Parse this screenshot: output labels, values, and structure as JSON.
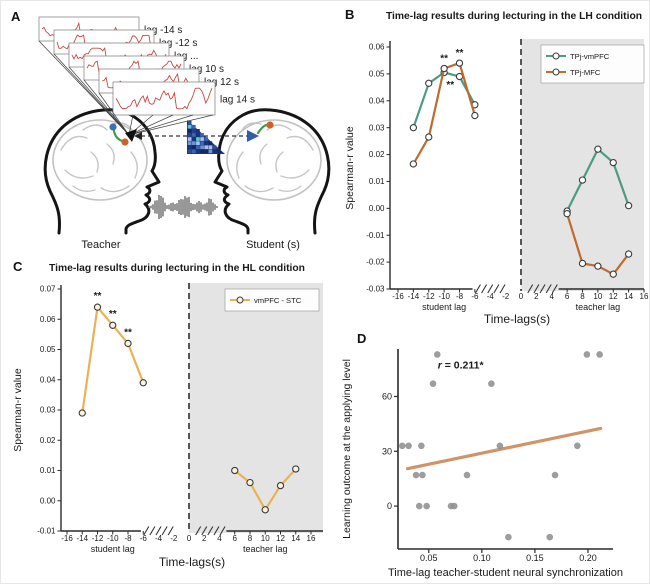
{
  "panels": {
    "a": {
      "label": "A",
      "lag_labels": [
        "lag -14 s",
        "lag -12 s",
        "lag ...",
        "lag 10 s",
        "lag 12 s",
        "lag 14 s"
      ],
      "teacher_label": "Teacher",
      "student_label": "Student (s)",
      "waveform_color": "#c34a42",
      "matrix_palette": [
        "#16295e",
        "#24418f",
        "#3b63b8",
        "#6f94d6",
        "#a9c0e8",
        "#2b4d9e",
        "#1b3372",
        "#57c8d0"
      ]
    },
    "b": {
      "label": "B"
    },
    "c": {
      "label": "C"
    },
    "d": {
      "label": "D"
    }
  },
  "colors": {
    "shade": "#e4e4e4",
    "axis": "#2a2a2a",
    "marker_edge": "#3a3a3a"
  },
  "chart_data": [
    {
      "id": "b",
      "type": "line",
      "title": "Time-lag results during lecturing in the LH condition",
      "ylabel": "Spearman-r value",
      "xlabel": "Time-lags(s)",
      "x_sub_labels": [
        "student lag",
        "teacher lag"
      ],
      "xlim": [
        -16,
        16
      ],
      "ylim": [
        -0.03,
        0.06
      ],
      "xticks": [
        -16,
        -14,
        -12,
        -10,
        -8,
        -6,
        -4,
        -2,
        0,
        2,
        4,
        6,
        8,
        10,
        12,
        14,
        16
      ],
      "xtick_labels": [
        "-16",
        "-14",
        "-12",
        "-10",
        "-8",
        "-6",
        "-4",
        "-2",
        "0",
        "2",
        "4",
        "6",
        "8",
        "10",
        "12",
        "14",
        "16"
      ],
      "yticks": [
        -0.03,
        -0.02,
        -0.01,
        0,
        0.01,
        0.02,
        0.03,
        0.04,
        0.05,
        0.06
      ],
      "ytick_labels": [
        "-0.03",
        "-0.02",
        "-0.01",
        "0.00",
        "0.01",
        "0.02",
        "0.03",
        "0.04",
        "0.05",
        "0.06"
      ],
      "shaded_region": [
        0,
        16
      ],
      "dashed_line_x": 0,
      "axis_break": true,
      "marker_fill": "#ffffff",
      "legend_position": "top-right",
      "series": [
        {
          "name": "TPj-vmPFC",
          "color": "#4d9b82",
          "segments": [
            {
              "x": [
                -14,
                -12,
                -10,
                -8,
                -6
              ],
              "y": [
                0.03,
                0.0465,
                0.0505,
                0.049,
                0.0385
              ]
            },
            {
              "x": [
                6,
                8,
                10,
                12,
                14
              ],
              "y": [
                -0.001,
                0.0105,
                0.022,
                0.017,
                0.001
              ]
            }
          ]
        },
        {
          "name": "TPj-MFC",
          "color": "#c16a2e",
          "segments": [
            {
              "x": [
                -14,
                -12,
                -10,
                -8,
                -6
              ],
              "y": [
                0.0165,
                0.0265,
                0.052,
                0.054,
                0.0345
              ]
            },
            {
              "x": [
                6,
                8,
                10,
                12,
                14
              ],
              "y": [
                -0.002,
                -0.0205,
                -0.0215,
                -0.0245,
                -0.017
              ]
            }
          ]
        }
      ],
      "annotations": [
        {
          "x": -10,
          "y": 0.0557,
          "text": "**"
        },
        {
          "x": -8,
          "y": 0.0577,
          "text": "**"
        },
        {
          "x": -9.2,
          "y": 0.0458,
          "text": "**"
        }
      ]
    },
    {
      "id": "c",
      "type": "line",
      "title": "Time-lag results during lecturing in the HL condition",
      "ylabel": "Spearman-r value",
      "xlabel": "Time-lags(s)",
      "x_sub_labels": [
        "student lag",
        "teacher lag"
      ],
      "xlim": [
        -16,
        16
      ],
      "ylim": [
        -0.01,
        0.07
      ],
      "xticks": [
        -16,
        -14,
        -12,
        -10,
        -8,
        -6,
        -4,
        -2,
        0,
        2,
        4,
        6,
        8,
        10,
        12,
        14,
        16
      ],
      "xtick_labels": [
        "-16",
        "-14",
        "-12",
        "-10",
        "-8",
        "-6",
        "-4",
        "-2",
        "0",
        "2",
        "4",
        "6",
        "8",
        "10",
        "12",
        "14",
        "16"
      ],
      "yticks": [
        -0.01,
        0,
        0.01,
        0.02,
        0.03,
        0.04,
        0.05,
        0.06,
        0.07
      ],
      "ytick_labels": [
        "-0.01",
        "0.00",
        "0.01",
        "0.02",
        "0.03",
        "0.04",
        "0.05",
        "0.06",
        "0.07"
      ],
      "shaded_region": [
        0,
        16
      ],
      "dashed_line_x": 0,
      "axis_break": true,
      "marker_fill": "#fcf3de",
      "legend_position": "top-right",
      "series": [
        {
          "name": "vmPFC - STC",
          "color": "#e9b254",
          "segments": [
            {
              "x": [
                -14,
                -12,
                -10,
                -8,
                -6
              ],
              "y": [
                0.029,
                0.064,
                0.058,
                0.052,
                0.039
              ]
            },
            {
              "x": [
                6,
                8,
                10,
                12,
                14
              ],
              "y": [
                0.01,
                0.006,
                -0.003,
                0.005,
                0.0105
              ]
            }
          ]
        }
      ],
      "annotations": [
        {
          "x": -12,
          "y": 0.0677,
          "text": "**"
        },
        {
          "x": -10,
          "y": 0.0617,
          "text": "**"
        },
        {
          "x": -8,
          "y": 0.0557,
          "text": "**"
        }
      ]
    },
    {
      "id": "d",
      "type": "scatter",
      "ylabel": "Learning outcome at the applying level",
      "xlabel": "Time-lag teacher-student neural synchronization",
      "xlim": [
        0.021,
        0.2236
      ],
      "ylim": [
        -23.5,
        86
      ],
      "xticks": [
        0.05,
        0.1,
        0.15,
        0.2
      ],
      "xtick_labels": [
        "0.05",
        "0.10",
        "0.15",
        "0.20"
      ],
      "yticks": [
        0,
        30,
        60
      ],
      "ytick_labels": [
        "0",
        "30",
        "60"
      ],
      "point_color": "#8f8f8f",
      "points": [
        [
          0.025,
          33
        ],
        [
          0.031,
          33
        ],
        [
          0.043,
          33
        ],
        [
          0.117,
          33
        ],
        [
          0.19,
          33
        ],
        [
          0.054,
          67
        ],
        [
          0.109,
          67
        ],
        [
          0.058,
          83
        ],
        [
          0.199,
          83
        ],
        [
          0.211,
          83
        ],
        [
          0.038,
          17
        ],
        [
          0.044,
          17
        ],
        [
          0.086,
          17
        ],
        [
          0.169,
          17
        ],
        [
          0.041,
          0
        ],
        [
          0.048,
          0
        ],
        [
          0.071,
          0
        ],
        [
          0.074,
          0
        ],
        [
          0.125,
          -17
        ],
        [
          0.164,
          -17
        ]
      ],
      "regression": {
        "x1": 0.03,
        "y1": 20.5,
        "x2": 0.212,
        "y2": 42.5,
        "color": "#cf9467"
      },
      "annotation": {
        "italic": "r",
        "text": " = 0.211*",
        "x": 0.08,
        "y": 77
      }
    }
  ]
}
